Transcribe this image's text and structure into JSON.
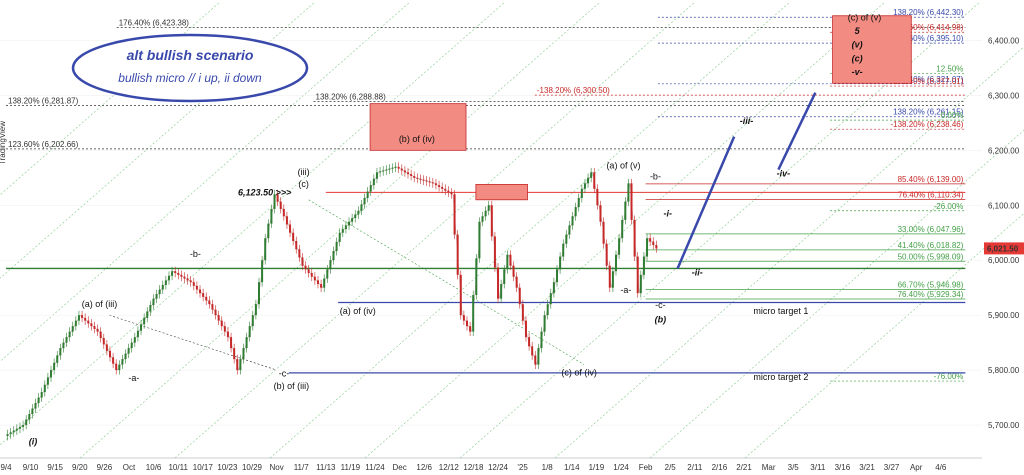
{
  "chart_data": {
    "type": "candlestick",
    "watermark": "TradingView",
    "last_price": {
      "value": 6021.5,
      "label": "6,021.50",
      "color": "#e53935"
    },
    "ylim": [
      5640,
      6470
    ],
    "y_ticks": [
      {
        "value": 5700,
        "label": "5,700.00"
      },
      {
        "value": 5800,
        "label": "5,800.00"
      },
      {
        "value": 5900,
        "label": "5,900.00"
      },
      {
        "value": 6000,
        "label": "6,000.00"
      },
      {
        "value": 6100,
        "label": "6,100.00"
      },
      {
        "value": 6200,
        "label": "6,200.00"
      },
      {
        "value": 6300,
        "label": "6,300.00"
      },
      {
        "value": 6400,
        "label": "6,400.00"
      }
    ],
    "x_ticks": [
      "9/4",
      "9/10",
      "9/15",
      "9/20",
      "9/26",
      "Oct",
      "10/6",
      "10/11",
      "10/17",
      "10/23",
      "10/29",
      "Nov",
      "11/7",
      "11/13",
      "11/19",
      "11/24",
      "Dec",
      "12/6",
      "12/12",
      "12/18",
      "12/24",
      "'25",
      "1/8",
      "1/14",
      "1/19",
      "1/24",
      "Feb",
      "2/5",
      "2/11",
      "2/16",
      "2/21",
      "Mar",
      "3/5",
      "3/11",
      "3/16",
      "3/21",
      "3/27",
      "Apr",
      "4/6"
    ],
    "price_path": [
      [
        0,
        5680
      ],
      [
        2,
        5700
      ],
      [
        4,
        5760
      ],
      [
        6,
        5840
      ],
      [
        8,
        5900
      ],
      [
        10,
        5870
      ],
      [
        12,
        5800
      ],
      [
        14,
        5860
      ],
      [
        16,
        5930
      ],
      [
        18,
        5980
      ],
      [
        20,
        5960
      ],
      [
        22,
        5920
      ],
      [
        24,
        5860
      ],
      [
        25,
        5800
      ],
      [
        27,
        5920
      ],
      [
        28,
        6040
      ],
      [
        29,
        6120
      ],
      [
        30,
        6080
      ],
      [
        32,
        5990
      ],
      [
        34,
        5950
      ],
      [
        36,
        6050
      ],
      [
        38,
        6090
      ],
      [
        40,
        6160
      ],
      [
        42,
        6170
      ],
      [
        44,
        6150
      ],
      [
        46,
        6140
      ],
      [
        48,
        6120
      ],
      [
        49,
        5900
      ],
      [
        50,
        5870
      ],
      [
        51,
        6070
      ],
      [
        52,
        6100
      ],
      [
        53,
        5930
      ],
      [
        54,
        6010
      ],
      [
        55,
        5950
      ],
      [
        56,
        5860
      ],
      [
        57,
        5810
      ],
      [
        58,
        5900
      ],
      [
        59,
        5960
      ],
      [
        60,
        6030
      ],
      [
        61,
        6080
      ],
      [
        62,
        6130
      ],
      [
        63,
        6160
      ],
      [
        64,
        6070
      ],
      [
        65,
        5950
      ],
      [
        66,
        6040
      ],
      [
        67,
        6140
      ],
      [
        68,
        5940
      ],
      [
        69,
        6040
      ],
      [
        70,
        6021.5
      ]
    ],
    "price_box": {
      "max_index": 70,
      "x_end_tick": 26.5
    },
    "levels": [
      {
        "label": "176.40% (6,423.38)",
        "value": 6423.38,
        "x0": 4.5,
        "x1": 39,
        "color": "#333333",
        "dash": "2,2"
      },
      {
        "label": "138.20% (6,281.87)",
        "value": 6281.87,
        "x0": 0,
        "x1": 39,
        "color": "#333333",
        "dash": "2,2"
      },
      {
        "label": "138.20% (6,288.88)",
        "value": 6288.88,
        "x0": 12.5,
        "x1": 39,
        "color": "#333333",
        "dash": "2,2"
      },
      {
        "label": "123.60% (6,202.66)",
        "value": 6202.66,
        "x0": 0,
        "x1": 39,
        "color": "#333333",
        "dash": "2,2"
      },
      {
        "label": "138.20% (6,442.30)",
        "value": 6442.3,
        "x0": 26.5,
        "x1": 39,
        "color": "#3949ab",
        "dash": "2,2"
      },
      {
        "label": "223.60% (6,395.10)",
        "value": 6395.1,
        "x0": 26.5,
        "x1": 39,
        "color": "#3949ab",
        "dash": "2,2"
      },
      {
        "label": "176.40% (6,321.07)",
        "value": 6321.07,
        "x0": 26.5,
        "x1": 39,
        "color": "#3949ab",
        "dash": "2,2"
      },
      {
        "label": "138.20% (6,261.15)",
        "value": 6261.15,
        "x0": 26.5,
        "x1": 39,
        "color": "#3949ab",
        "dash": "2,2"
      },
      {
        "label": "-138.20% (6,300.50)",
        "value": 6300.5,
        "x0": 21.5,
        "x1": 39,
        "color": "#c62828",
        "dash": "2,2"
      },
      {
        "label": "223.60% (6,414.98)",
        "value": 6414.98,
        "x0": 33.5,
        "x1": 39,
        "color": "#c62828",
        "dash": "2,2"
      },
      {
        "label": "176.40% (6,317.01)",
        "value": 6317.01,
        "x0": 33.5,
        "x1": 39,
        "color": "#c62828",
        "dash": "2,2"
      },
      {
        "label": "-138.20% (6,238.46)",
        "value": 6238.46,
        "x0": 33.5,
        "x1": 39,
        "color": "#c62828",
        "dash": "2,2"
      },
      {
        "label": "12.50%",
        "value": 6340,
        "x0": 33.5,
        "x1": 39,
        "color": "#43a047",
        "dash": "2,2"
      },
      {
        "label": "0.00%",
        "value": 6255,
        "x0": 33.5,
        "x1": 39,
        "color": "#43a047",
        "dash": "2,2"
      },
      {
        "label": "85.40% (6,139.00)",
        "value": 6139,
        "x0": 26,
        "x1": 39,
        "color": "#c62828",
        "dash": ""
      },
      {
        "label": "76.40% (6,110.34)",
        "value": 6110.34,
        "x0": 26,
        "x1": 39,
        "color": "#c62828",
        "dash": ""
      },
      {
        "label": "-26.00%",
        "value": 6090,
        "x0": 33.5,
        "x1": 39,
        "color": "#43a047",
        "dash": "2,2"
      },
      {
        "label": "33.00% (6,047.96)",
        "value": 6047.96,
        "x0": 26,
        "x1": 39,
        "color": "#43a047",
        "dash": ""
      },
      {
        "label": "41.40% (6,018.82)",
        "value": 6018.82,
        "x0": 26,
        "x1": 39,
        "color": "#43a047",
        "dash": ""
      },
      {
        "label": "50.00% (5,998.09)",
        "value": 5998.09,
        "x0": 26,
        "x1": 39,
        "color": "#43a047",
        "dash": ""
      },
      {
        "label": "66.70% (5,946.98)",
        "value": 5946.98,
        "x0": 26,
        "x1": 39,
        "color": "#43a047",
        "dash": ""
      },
      {
        "label": "76.40% (5,929.34)",
        "value": 5929.34,
        "x0": 26,
        "x1": 39,
        "color": "#43a047",
        "dash": ""
      },
      {
        "label": "-76.00%",
        "value": 5780,
        "x0": 33.5,
        "x1": 39,
        "color": "#43a047",
        "dash": "2,2"
      }
    ],
    "lines": [
      {
        "value": 6123.5,
        "x0": 13,
        "x1": 39,
        "color": "#e53935",
        "width": 1
      },
      {
        "value": 5985,
        "x0": 0,
        "x1": 39,
        "color": "#2e7d32",
        "width": 1.3
      },
      {
        "value": 5923,
        "x0": 13.5,
        "x1": 39,
        "color": "#3949ab",
        "width": 1.3
      },
      {
        "value": 5795,
        "x0": 11.5,
        "x1": 39,
        "color": "#3949ab",
        "width": 1.3
      }
    ],
    "boxes": [
      {
        "label": "(b) of (iv)",
        "x0": 14.8,
        "x1": 18.7,
        "y0": 6200,
        "y1": 6285,
        "color": "#f28b82"
      },
      {
        "label": "",
        "x0": 19.1,
        "x1": 21.2,
        "y0": 6110,
        "y1": 6138,
        "color": "#f28b82"
      },
      {
        "label": "(c) of (v)",
        "x0": 33.6,
        "x1": 36.8,
        "y0": 6322,
        "y1": 6445,
        "color": "#f28b82"
      }
    ],
    "projection": [
      [
        27.3,
        5985
      ],
      [
        29.6,
        6225
      ]
    ],
    "projection2": [
      [
        31.4,
        6165
      ],
      [
        32.9,
        6305
      ]
    ],
    "wave_labels": [
      {
        "text": "(i)",
        "x": 1.1,
        "y": 5665,
        "color": "#111111",
        "italic": true
      },
      {
        "text": "(a) of (iii)",
        "x": 3.8,
        "y": 5915,
        "color": "#111111"
      },
      {
        "text": "-a-",
        "x": 5.2,
        "y": 5780,
        "color": "#111111"
      },
      {
        "text": "-b-",
        "x": 7.7,
        "y": 6006,
        "color": "#111111"
      },
      {
        "text": "-c-",
        "x": 11.3,
        "y": 5788,
        "color": "#111111"
      },
      {
        "text": "(b) of (iii)",
        "x": 11.6,
        "y": 5766,
        "color": "#111111"
      },
      {
        "text": "(iii)",
        "x": 12.1,
        "y": 6155,
        "color": "#111111"
      },
      {
        "text": "(c)",
        "x": 12.1,
        "y": 6133,
        "color": "#111111"
      },
      {
        "text": "(a) of (iv)",
        "x": 14.3,
        "y": 5902,
        "color": "#111111"
      },
      {
        "text": "(b) of (iv)",
        "x": 16.7,
        "y": 6215,
        "color": "#111111"
      },
      {
        "text": "(c) of (iv)",
        "x": 23.3,
        "y": 5790,
        "color": "#111111"
      },
      {
        "text": "(a) of (v)",
        "x": 25.1,
        "y": 6167,
        "color": "#111111"
      },
      {
        "text": "-b-",
        "x": 26.4,
        "y": 6147,
        "color": "#e53935"
      },
      {
        "text": "-i-",
        "x": 26.9,
        "y": 6080,
        "color": "#3949ab",
        "italic": true
      },
      {
        "text": "-a-",
        "x": 25.2,
        "y": 5940,
        "color": "#e53935"
      },
      {
        "text": "-ii-",
        "x": 28.1,
        "y": 5972,
        "color": "#3949ab",
        "italic": true
      },
      {
        "text": "-c-",
        "x": 26.6,
        "y": 5913,
        "color": "#e53935"
      },
      {
        "text": "(b)",
        "x": 26.6,
        "y": 5887,
        "color": "#111111",
        "italic": true
      },
      {
        "text": "-iii-",
        "x": 30.1,
        "y": 6248,
        "color": "#3949ab",
        "italic": true
      },
      {
        "text": "-iv-",
        "x": 31.6,
        "y": 6152,
        "color": "#3949ab",
        "italic": true
      },
      {
        "text": "5",
        "x": 34.6,
        "y": 6412,
        "color": "#3949ab",
        "italic": true
      },
      {
        "text": "(v)",
        "x": 34.6,
        "y": 6387,
        "color": "#3949ab",
        "italic": true
      },
      {
        "text": "(c)",
        "x": 34.6,
        "y": 6362,
        "color": "#3949ab",
        "italic": true
      },
      {
        "text": "-v-",
        "x": 34.6,
        "y": 6337,
        "color": "#3949ab",
        "italic": true
      },
      {
        "text": "(c) of (v)",
        "x": 34.9,
        "y": 6436,
        "color": "#111111"
      },
      {
        "text": "micro target 1",
        "x": 31.5,
        "y": 5902,
        "color": "#111111"
      },
      {
        "text": "micro target 2",
        "x": 31.5,
        "y": 5782,
        "color": "#111111"
      }
    ],
    "price_tag": {
      "text": "6,123.50 >>>",
      "x": 11.6,
      "y": 6123.5,
      "color": "#e53935"
    },
    "scenario": {
      "title": "alt bullish scenario",
      "subtitle": "bullish micro // i up, ii down",
      "color": "#3949ab"
    }
  }
}
